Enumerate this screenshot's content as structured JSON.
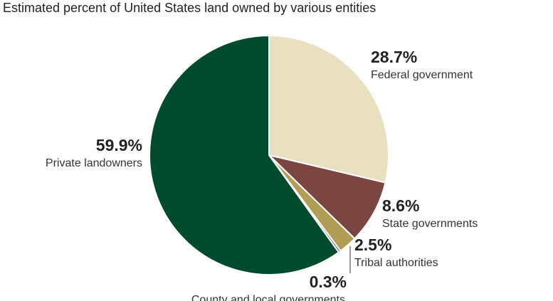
{
  "chart_data": {
    "type": "pie",
    "title": "Estimated percent of United States land owned by various entities",
    "categories": [
      "Federal government",
      "State governments",
      "Tribal authorities",
      "County and local governments",
      "Private landowners"
    ],
    "values": [
      28.7,
      8.6,
      2.5,
      0.3,
      59.9
    ],
    "value_labels": [
      "28.7%",
      "8.6%",
      "2.5%",
      "0.3%",
      "59.9%"
    ],
    "colors": [
      "#e9dfc1",
      "#7b4642",
      "#b29d57",
      "#5a4c8c",
      "#004b2d"
    ]
  }
}
